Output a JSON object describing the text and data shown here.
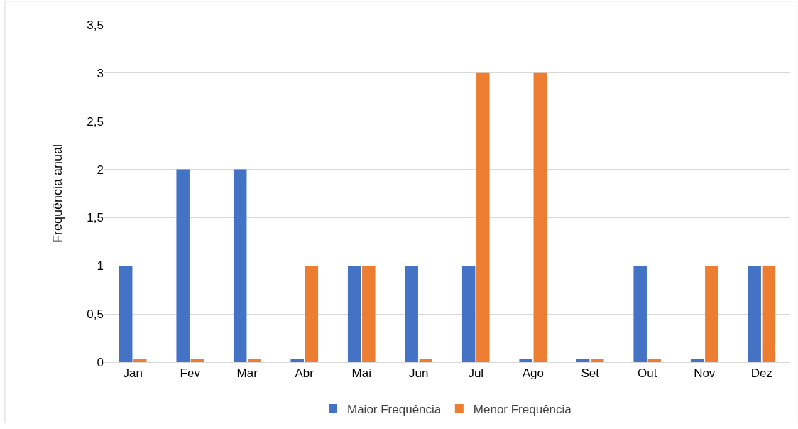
{
  "chart_data": {
    "type": "bar",
    "ylabel": "Frequência anual",
    "categories": [
      "Jan",
      "Fev",
      "Mar",
      "Abr",
      "Mai",
      "Jun",
      "Jul",
      "Ago",
      "Set",
      "Out",
      "Nov",
      "Dez"
    ],
    "series": [
      {
        "name": "Maior Frequência",
        "color": "#4472c4",
        "values": [
          1,
          2,
          2,
          0.03,
          1,
          1,
          1,
          0.03,
          0.03,
          1,
          0.03,
          1
        ]
      },
      {
        "name": "Menor Frequência",
        "color": "#ed7d31",
        "values": [
          0.03,
          0.03,
          0.03,
          1,
          1,
          0.03,
          3,
          3,
          0.03,
          0.03,
          1,
          1
        ]
      }
    ],
    "ylim": [
      0,
      3.5
    ],
    "yticks": [
      {
        "value": 0,
        "label": "0"
      },
      {
        "value": 0.5,
        "label": "0,5"
      },
      {
        "value": 1,
        "label": "1"
      },
      {
        "value": 1.5,
        "label": "1,5"
      },
      {
        "value": 2,
        "label": "2"
      },
      {
        "value": 2.5,
        "label": "2,5"
      },
      {
        "value": 3,
        "label": "3"
      },
      {
        "value": 3.5,
        "label": "3,5"
      }
    ],
    "grid": "y",
    "legend": "bottom"
  }
}
